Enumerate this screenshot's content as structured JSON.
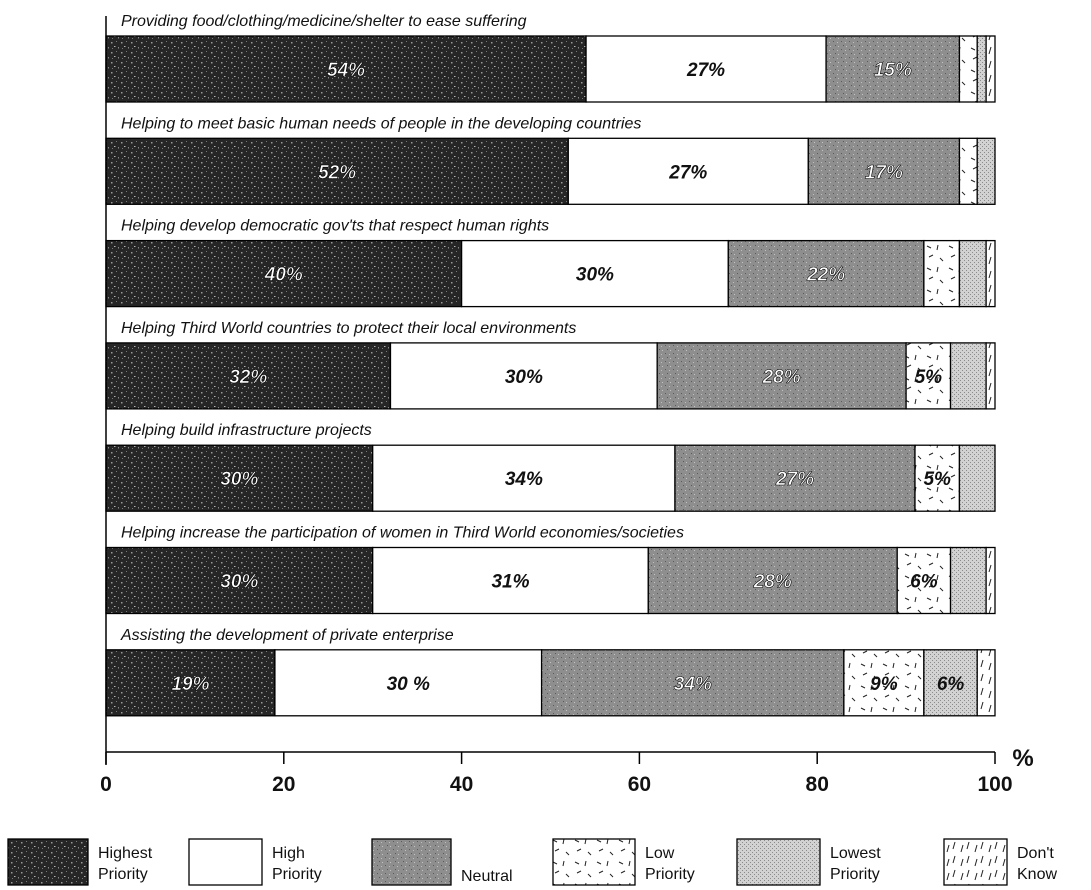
{
  "chart_data": {
    "type": "bar",
    "orientation": "horizontal",
    "stacked": true,
    "unit_label": "%",
    "xlim": [
      0,
      100
    ],
    "xticks": [
      0,
      20,
      40,
      60,
      80,
      100
    ],
    "categories": [
      "Providing food/clothing/medicine/shelter to ease suffering",
      "Helping to meet basic human needs of people in the developing countries",
      "Helping develop democratic gov'ts that respect human rights",
      "Helping Third World countries to protect their local environments",
      "Helping build infrastructure projects",
      "Helping increase the participation of women in Third World economies/societies",
      "Assisting the development of private enterprise"
    ],
    "series": [
      {
        "name": "Highest Priority",
        "legend_lines": [
          "Highest",
          "Priority"
        ],
        "color": "#2b2b2b",
        "pattern": "dark-speckle",
        "values": [
          54,
          52,
          40,
          32,
          30,
          30,
          19
        ],
        "labels": [
          "54%",
          "52%",
          "40%",
          "32%",
          "30%",
          "30%",
          "19%"
        ]
      },
      {
        "name": "High Priority",
        "legend_lines": [
          "High",
          "Priority"
        ],
        "color": "#ffffff",
        "pattern": "plain",
        "values": [
          27,
          27,
          30,
          30,
          34,
          31,
          30
        ],
        "labels": [
          "27%",
          "27%",
          "30%",
          "30%",
          "34%",
          "31%",
          "30 %"
        ]
      },
      {
        "name": "Neutral",
        "legend_lines": [
          "Neutral"
        ],
        "color": "#8c8c8c",
        "pattern": "medium-speckle",
        "values": [
          15,
          17,
          22,
          28,
          27,
          28,
          34
        ],
        "labels": [
          "15%",
          "17%",
          "22%",
          "28%",
          "27%",
          "28%",
          "34%"
        ]
      },
      {
        "name": "Low Priority",
        "legend_lines": [
          "Low",
          "Priority"
        ],
        "color": "#ffffff",
        "pattern": "dashes",
        "values": [
          2,
          2,
          4,
          5,
          5,
          6,
          9
        ],
        "labels": [
          "",
          "",
          "",
          "5%",
          "5%",
          "6%",
          "9%"
        ]
      },
      {
        "name": "Lowest Priority",
        "legend_lines": [
          "Lowest",
          "Priority"
        ],
        "color": "#c8c8c8",
        "pattern": "light-dots",
        "values": [
          1,
          2,
          3,
          4,
          4,
          4,
          6
        ],
        "labels": [
          "",
          "",
          "",
          "",
          "",
          "",
          "6%"
        ]
      },
      {
        "name": "Don't Know",
        "legend_lines": [
          "Don't",
          "Know"
        ],
        "color": "#ffffff",
        "pattern": "slashes",
        "values": [
          1,
          0,
          1,
          1,
          0,
          1,
          2
        ],
        "labels": [
          "",
          "",
          "",
          "",
          "",
          "",
          ""
        ]
      }
    ]
  }
}
